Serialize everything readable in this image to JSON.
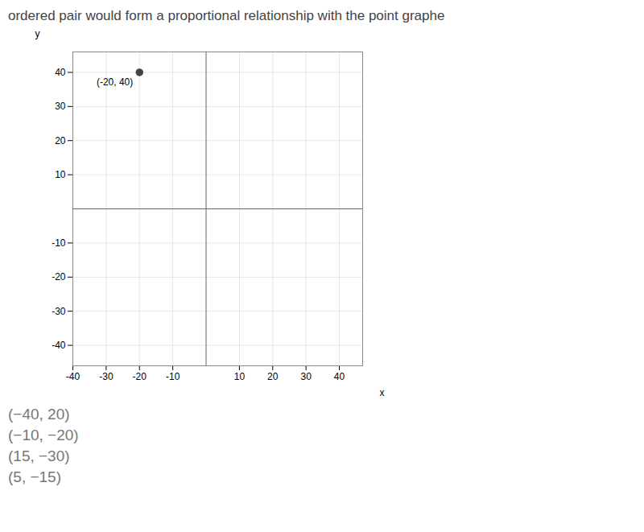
{
  "chart_data": {
    "type": "scatter",
    "title": "ordered pair would form a proportional relationship with the point graphe",
    "xlabel": "x",
    "ylabel": "y",
    "x": [
      -20
    ],
    "values": [
      40
    ],
    "value_labels": [
      "(-20, 40)"
    ],
    "data_labels": true,
    "color": "#444444",
    "xlim": [
      -40,
      47
    ],
    "ylim": [
      -46,
      46
    ],
    "xticks": [
      -40,
      -30,
      -20,
      -10,
      10,
      20,
      30,
      40
    ],
    "yticks": [
      -40,
      -30,
      -20,
      -10,
      10,
      20,
      30,
      40
    ],
    "grid": true,
    "annotations": [
      "(−40, 20)",
      "(−10, −20)",
      "(15, −30)",
      "(5, −15)"
    ]
  }
}
